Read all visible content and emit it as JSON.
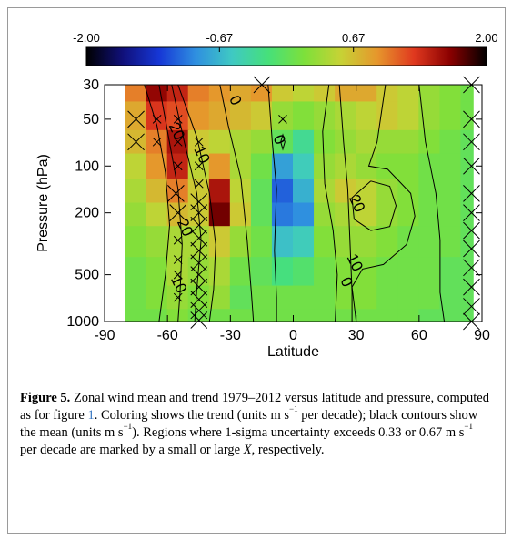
{
  "colors": {
    "colormap": [
      "#000000",
      "#10107a",
      "#1637d6",
      "#2f8fe0",
      "#3fc9c3",
      "#46e07a",
      "#7ee03a",
      "#c7d235",
      "#e6962c",
      "#e0391f",
      "#8a0000",
      "#000000"
    ]
  },
  "chart_data": {
    "type": "heatmap",
    "xlabel": "Latitude",
    "ylabel": "Pressure (hPa)",
    "xlim": [
      -90,
      90
    ],
    "ylim": [
      1000,
      30
    ],
    "y_scale": "log",
    "x_ticks": [
      "-90",
      "-60",
      "-30",
      "0",
      "30",
      "60",
      "90"
    ],
    "y_ticks": [
      "30",
      "50",
      "100",
      "200",
      "500",
      "1000"
    ],
    "colorbar": {
      "range": [
        -2.0,
        2.0
      ],
      "tick_labels": [
        "-2.00",
        "-0.67",
        "0.67",
        "2.00"
      ],
      "tick_values": [
        -2.0,
        -0.67,
        0.67,
        2.0
      ],
      "orientation": "horizontal",
      "placement": "top"
    },
    "trend_grid": {
      "lats": [
        -75,
        -65,
        -55,
        -45,
        -35,
        -25,
        -15,
        -5,
        5,
        15,
        25,
        35,
        45,
        55,
        65,
        75,
        85
      ],
      "pressures": [
        30,
        50,
        70,
        100,
        150,
        200,
        300,
        500,
        700,
        1000
      ],
      "values": [
        [
          1.0,
          1.6,
          1.4,
          1.0,
          0.9,
          0.8,
          0.9,
          0.6,
          0.5,
          0.6,
          0.8,
          0.8,
          0.6,
          0.5,
          0.3,
          0.2,
          0.1
        ],
        [
          0.8,
          1.3,
          1.2,
          0.9,
          0.8,
          0.7,
          0.6,
          0.3,
          0.2,
          0.3,
          0.4,
          0.5,
          0.6,
          0.5,
          0.3,
          0.2,
          0.1
        ],
        [
          0.7,
          1.0,
          1.5,
          0.6,
          0.5,
          0.4,
          0.3,
          0.0,
          -0.3,
          0.2,
          0.3,
          0.4,
          0.3,
          0.3,
          0.2,
          0.1,
          0.0
        ],
        [
          0.5,
          0.9,
          1.4,
          0.5,
          0.9,
          0.4,
          0.1,
          -0.8,
          -0.5,
          0.3,
          0.4,
          0.3,
          0.2,
          0.2,
          0.1,
          0.1,
          0.0
        ],
        [
          0.4,
          0.7,
          1.0,
          0.6,
          1.5,
          0.5,
          0.0,
          -1.1,
          -0.7,
          0.4,
          0.6,
          0.5,
          0.3,
          0.2,
          0.1,
          0.1,
          0.0
        ],
        [
          0.3,
          0.5,
          0.7,
          0.6,
          1.7,
          0.6,
          0.0,
          -1.0,
          -0.9,
          0.3,
          0.4,
          0.5,
          0.3,
          0.2,
          0.1,
          0.1,
          0.0
        ],
        [
          0.2,
          0.3,
          0.4,
          0.4,
          0.6,
          0.3,
          0.1,
          -0.6,
          -0.5,
          0.2,
          0.3,
          0.3,
          0.2,
          0.1,
          0.1,
          0.1,
          0.0
        ],
        [
          0.1,
          0.2,
          0.4,
          0.3,
          0.4,
          0.1,
          0.0,
          -0.2,
          -0.1,
          0.1,
          0.2,
          0.2,
          0.1,
          0.1,
          0.1,
          0.0,
          0.0
        ],
        [
          0.1,
          0.2,
          0.3,
          0.2,
          0.3,
          0.0,
          0.1,
          0.1,
          0.1,
          0.1,
          0.2,
          0.2,
          0.1,
          0.1,
          0.1,
          0.0,
          0.0
        ],
        [
          0.1,
          0.1,
          0.2,
          0.1,
          0.1,
          0.1,
          0.1,
          0.1,
          0.1,
          0.1,
          0.1,
          0.1,
          0.1,
          0.1,
          0.0,
          0.0,
          0.0
        ]
      ]
    },
    "contour_labels": [
      {
        "text": "0",
        "lat": -28,
        "p": 38
      },
      {
        "text": "20",
        "lat": -56,
        "p": 60
      },
      {
        "text": "10",
        "lat": -44,
        "p": 85
      },
      {
        "text": "0",
        "lat": -7,
        "p": 68
      },
      {
        "text": "20",
        "lat": -52,
        "p": 250
      },
      {
        "text": "10",
        "lat": -55,
        "p": 580
      },
      {
        "text": "20",
        "lat": 30,
        "p": 175
      },
      {
        "text": "10",
        "lat": 29,
        "p": 420
      },
      {
        "text": "0",
        "lat": 25,
        "p": 560
      }
    ],
    "contours": [
      [
        [
          -71,
          30
        ],
        [
          -65,
          55
        ],
        [
          -61,
          110
        ],
        [
          -59,
          240
        ],
        [
          -61,
          500
        ],
        [
          -64,
          1000
        ]
      ],
      [
        [
          -64,
          30
        ],
        [
          -60,
          60
        ],
        [
          -55,
          140
        ],
        [
          -53,
          320
        ],
        [
          -54,
          650
        ],
        [
          -55,
          1000
        ]
      ],
      [
        [
          -58,
          30
        ],
        [
          -52,
          70
        ],
        [
          -46,
          150
        ],
        [
          -44,
          300
        ],
        [
          -46,
          620
        ],
        [
          -47,
          1000
        ]
      ],
      [
        [
          -55,
          30
        ],
        [
          -46,
          65
        ],
        [
          -40,
          150
        ],
        [
          -37,
          320
        ],
        [
          -38,
          620
        ],
        [
          -40,
          1000
        ]
      ],
      [
        [
          -35,
          30
        ],
        [
          -31,
          55
        ],
        [
          -25,
          120
        ],
        [
          -22,
          300
        ],
        [
          -20,
          650
        ],
        [
          -19,
          1000
        ]
      ],
      [
        [
          -12,
          30
        ],
        [
          -10,
          70
        ],
        [
          -8,
          140
        ],
        [
          -9,
          350
        ],
        [
          -8,
          700
        ],
        [
          -8,
          1000
        ]
      ],
      [
        [
          -6,
          70
        ],
        [
          -5,
          63
        ],
        [
          -4,
          70
        ],
        [
          -5,
          78
        ],
        [
          -6,
          70
        ]
      ],
      [
        [
          17,
          30
        ],
        [
          14,
          60
        ],
        [
          15,
          130
        ],
        [
          19,
          260
        ],
        [
          21,
          500
        ],
        [
          20,
          1000
        ]
      ],
      [
        [
          22,
          30
        ],
        [
          24,
          70
        ],
        [
          26,
          140
        ],
        [
          27,
          300
        ],
        [
          28,
          650
        ],
        [
          28,
          1000
        ]
      ],
      [
        [
          37,
          125
        ],
        [
          46,
          135
        ],
        [
          49,
          180
        ],
        [
          46,
          245
        ],
        [
          37,
          260
        ],
        [
          29,
          220
        ],
        [
          28,
          160
        ],
        [
          37,
          125
        ]
      ],
      [
        [
          44,
          30
        ],
        [
          40,
          70
        ],
        [
          36,
          100
        ],
        [
          45,
          105
        ],
        [
          56,
          150
        ],
        [
          58,
          210
        ],
        [
          54,
          320
        ],
        [
          43,
          430
        ],
        [
          33,
          460
        ],
        [
          28,
          600
        ],
        [
          30,
          1000
        ]
      ],
      [
        [
          60,
          30
        ],
        [
          63,
          70
        ],
        [
          68,
          150
        ],
        [
          70,
          300
        ],
        [
          70,
          650
        ],
        [
          72,
          1000
        ]
      ]
    ],
    "uncertainty_marks": [
      {
        "size": "large",
        "lat": -75,
        "p": 50
      },
      {
        "size": "large",
        "lat": -75,
        "p": 70
      },
      {
        "size": "large",
        "lat": -56,
        "p": 150
      },
      {
        "size": "large",
        "lat": -55,
        "p": 200
      },
      {
        "size": "large",
        "lat": -45,
        "p": 170
      },
      {
        "size": "large",
        "lat": -45,
        "p": 200
      },
      {
        "size": "large",
        "lat": -45,
        "p": 240
      },
      {
        "size": "large",
        "lat": -45,
        "p": 290
      },
      {
        "size": "large",
        "lat": -45,
        "p": 350
      },
      {
        "size": "large",
        "lat": -45,
        "p": 420
      },
      {
        "size": "large",
        "lat": -45,
        "p": 500
      },
      {
        "size": "large",
        "lat": -45,
        "p": 600
      },
      {
        "size": "large",
        "lat": -45,
        "p": 720
      },
      {
        "size": "large",
        "lat": -45,
        "p": 850
      },
      {
        "size": "large",
        "lat": -45,
        "p": 980
      },
      {
        "size": "large",
        "lat": -15,
        "p": 30
      },
      {
        "size": "large",
        "lat": 85,
        "p": 30
      },
      {
        "size": "large",
        "lat": 85,
        "p": 50
      },
      {
        "size": "large",
        "lat": 85,
        "p": 70
      },
      {
        "size": "large",
        "lat": 85,
        "p": 100
      },
      {
        "size": "large",
        "lat": 85,
        "p": 150
      },
      {
        "size": "large",
        "lat": 85,
        "p": 200
      },
      {
        "size": "large",
        "lat": 85,
        "p": 260
      },
      {
        "size": "large",
        "lat": 85,
        "p": 340
      },
      {
        "size": "large",
        "lat": 85,
        "p": 450
      },
      {
        "size": "large",
        "lat": 85,
        "p": 600
      },
      {
        "size": "large",
        "lat": 85,
        "p": 800
      },
      {
        "size": "large",
        "lat": 85,
        "p": 1000
      },
      {
        "size": "small",
        "lat": -65,
        "p": 50
      },
      {
        "size": "small",
        "lat": -65,
        "p": 70
      },
      {
        "size": "small",
        "lat": -55,
        "p": 50
      },
      {
        "size": "small",
        "lat": -55,
        "p": 70
      },
      {
        "size": "small",
        "lat": -55,
        "p": 100
      },
      {
        "size": "small",
        "lat": -55,
        "p": 300
      },
      {
        "size": "small",
        "lat": -55,
        "p": 400
      },
      {
        "size": "small",
        "lat": -55,
        "p": 500
      },
      {
        "size": "small",
        "lat": -55,
        "p": 700
      },
      {
        "size": "small",
        "lat": -45,
        "p": 70
      },
      {
        "size": "small",
        "lat": -45,
        "p": 100
      },
      {
        "size": "small",
        "lat": -45,
        "p": 130
      },
      {
        "size": "small",
        "lat": -5,
        "p": 50
      }
    ]
  },
  "caption": {
    "label": "Figure 5.",
    "part1": " Zonal wind mean and trend 1979–2012 versus latitude and pressure, computed as for figure ",
    "fig_ref": "1",
    "part2": ". Coloring shows the trend (units m s",
    "exp1": "−1",
    "part3": " per decade); black contours show the mean (units m s",
    "exp2": "−1",
    "part4": "). Regions where 1-sigma uncertainty exceeds 0.33 or 0.67 m s",
    "exp3": "−1",
    "part5": " per decade are marked by a small or large ",
    "x_symbol": "X",
    "part6": ", respectively."
  }
}
